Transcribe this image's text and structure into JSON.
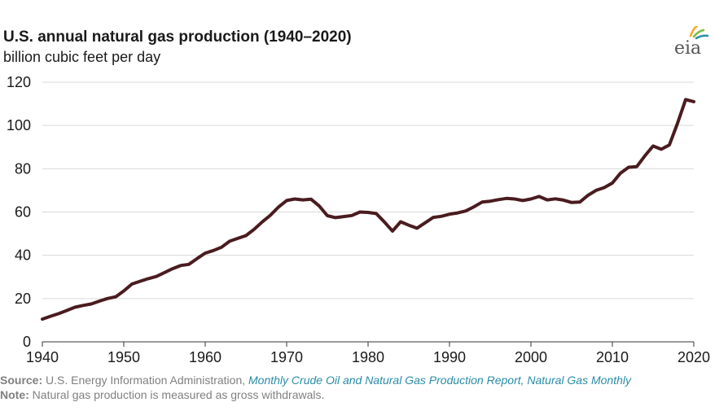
{
  "chart_data": {
    "type": "line",
    "title": "U.S. annual natural gas production (1940–2020)",
    "subtitle": "billion cubic feet per day",
    "xlabel": "",
    "ylabel": "billion cubic feet per day",
    "xlim": [
      1940,
      2020
    ],
    "ylim": [
      0,
      120
    ],
    "xticks": [
      1940,
      1950,
      1960,
      1970,
      1980,
      1990,
      2000,
      2010,
      2020
    ],
    "yticks": [
      0,
      20,
      40,
      60,
      80,
      100,
      120
    ],
    "grid": true,
    "legend": "none",
    "line_color": "#4a1c1f",
    "series": [
      {
        "x": [
          1940,
          1941,
          1942,
          1943,
          1944,
          1945,
          1946,
          1947,
          1948,
          1949,
          1950,
          1951,
          1952,
          1953,
          1954,
          1955,
          1956,
          1957,
          1958,
          1959,
          1960,
          1961,
          1962,
          1963,
          1964,
          1965,
          1966,
          1967,
          1968,
          1969,
          1970,
          1971,
          1972,
          1973,
          1974,
          1975,
          1976,
          1977,
          1978,
          1979,
          1980,
          1981,
          1982,
          1983,
          1984,
          1985,
          1986,
          1987,
          1988,
          1989,
          1990,
          1991,
          1992,
          1993,
          1994,
          1995,
          1996,
          1997,
          1998,
          1999,
          2000,
          2001,
          2002,
          2003,
          2004,
          2005,
          2006,
          2007,
          2008,
          2009,
          2010,
          2011,
          2012,
          2013,
          2014,
          2015,
          2016,
          2017,
          2018,
          2019,
          2020
        ],
        "values": [
          10.5,
          11.8,
          13.0,
          14.5,
          16.0,
          16.8,
          17.5,
          18.8,
          20.0,
          20.8,
          23.5,
          26.7,
          28.0,
          29.2,
          30.2,
          32.0,
          33.8,
          35.3,
          35.8,
          38.5,
          41.0,
          42.2,
          43.7,
          46.5,
          47.8,
          49.1,
          52.0,
          55.4,
          58.5,
          62.3,
          65.3,
          66.0,
          65.6,
          65.9,
          62.8,
          58.3,
          57.4,
          57.9,
          58.4,
          60.0,
          59.8,
          59.3,
          55.4,
          51.2,
          55.5,
          53.9,
          52.5,
          55.0,
          57.5,
          58.0,
          59.0,
          59.6,
          60.5,
          62.4,
          64.6,
          65.0,
          65.7,
          66.3,
          66.0,
          65.3,
          66.0,
          67.2,
          65.6,
          66.1,
          65.5,
          64.4,
          64.6,
          67.7,
          70.0,
          71.3,
          73.4,
          78.0,
          80.7,
          81.0,
          86.0,
          90.5,
          89.0,
          91.0,
          101.0,
          112.0,
          111.0
        ]
      }
    ]
  },
  "logo": {
    "text": "eia",
    "arc_colors": [
      "#f5a623",
      "#7dbb42",
      "#2a8ca8"
    ]
  },
  "footer": {
    "source_label": "Source:",
    "source_agency": " U.S. Energy Information Administration, ",
    "source_reports": "Monthly Crude Oil and Natural Gas Production Report, Natural Gas Monthly",
    "note_label": "Note:",
    "note_text": " Natural gas production is measured as gross withdrawals."
  }
}
